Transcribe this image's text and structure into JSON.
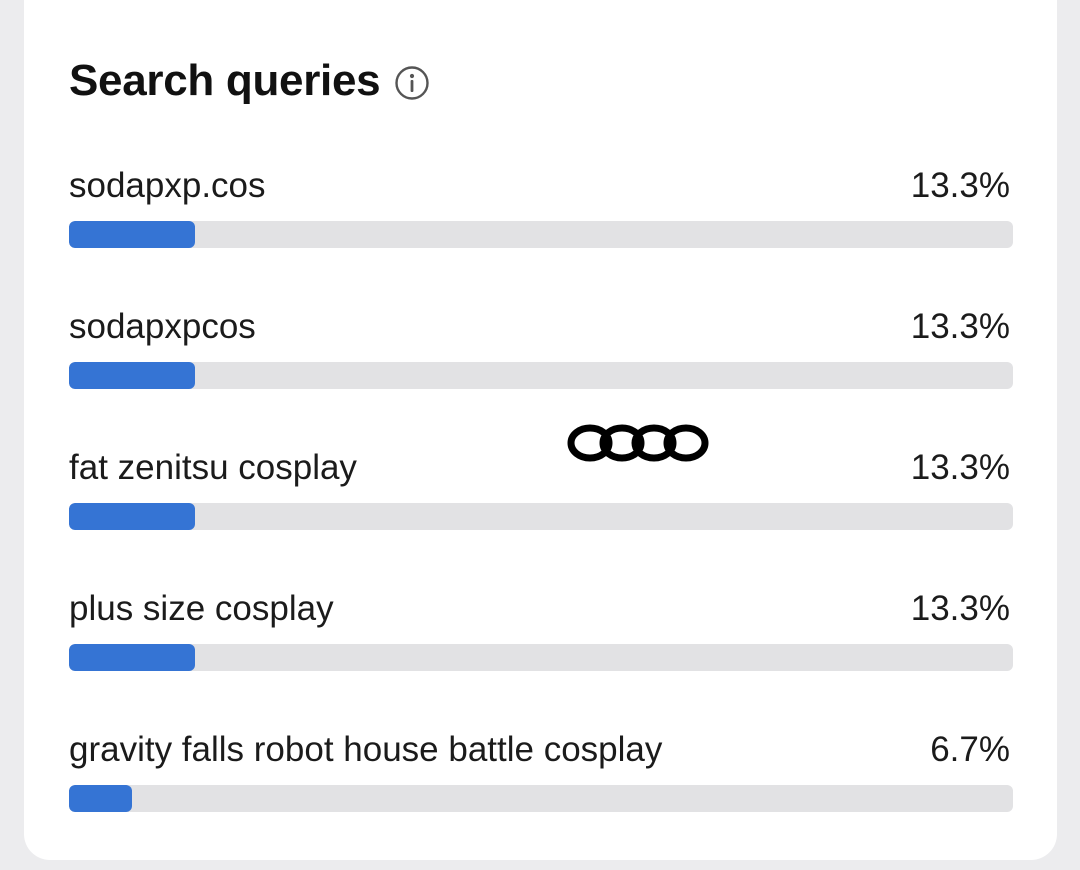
{
  "header": {
    "title": "Search queries",
    "info_icon": "info-circle-icon"
  },
  "colors": {
    "bar_fill": "#3574d4",
    "bar_track": "#e2e2e4"
  },
  "overlay_icon": "four-rings-logo-icon",
  "queries": [
    {
      "label": "sodapxp.cos",
      "value": "13.3%",
      "fraction": 0.133
    },
    {
      "label": "sodapxpcos",
      "value": "13.3%",
      "fraction": 0.133
    },
    {
      "label": "fat zenitsu cosplay",
      "value": "13.3%",
      "fraction": 0.133
    },
    {
      "label": "plus size cosplay",
      "value": "13.3%",
      "fraction": 0.133
    },
    {
      "label": "gravity falls robot house battle cosplay",
      "value": "6.7%",
      "fraction": 0.067
    }
  ]
}
